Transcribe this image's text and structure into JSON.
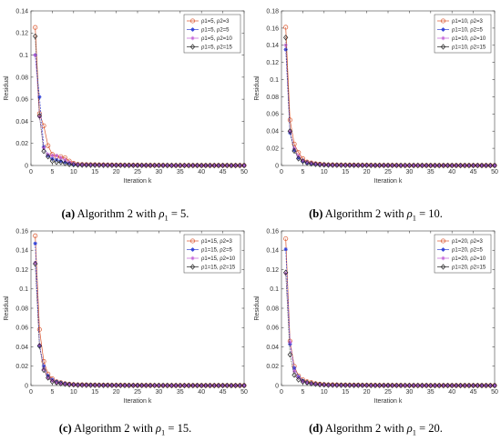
{
  "colors": [
    "#d9542b",
    "#2f3fd6",
    "#c05cd6",
    "#222222"
  ],
  "markers": [
    "circle",
    "star",
    "asterisk",
    "diamond"
  ],
  "chart_data": [
    {
      "type": "line",
      "caption_label": "(a)",
      "caption_text": "Algorithm 2 with ",
      "caption_rho": "ρ",
      "caption_sub": "1",
      "caption_value": " = 5.",
      "xlabel": "Iteration  k",
      "ylabel": "Residual",
      "xlim": [
        0,
        50
      ],
      "ylim": [
        0,
        0.14
      ],
      "xticks": [
        "0",
        "5",
        "10",
        "15",
        "20",
        "25",
        "30",
        "35",
        "40",
        "45",
        "50"
      ],
      "yticks": [
        "0",
        "0.02",
        "0.04",
        "0.06",
        "0.08",
        "0.1",
        "0.12",
        "0.14"
      ],
      "ytick_values": [
        0,
        0.02,
        0.04,
        0.06,
        0.08,
        0.1,
        0.12,
        0.14
      ],
      "legend": [
        "ρ1=5, ρ2=3",
        "ρ1=5, ρ2=5",
        "ρ1=5, ρ2=10",
        "ρ1=5, ρ2=15"
      ],
      "series": [
        {
          "values": [
            0.125,
            0.047,
            0.036,
            0.018,
            0.01,
            0.008,
            0.008,
            0.007,
            0.004,
            0.002,
            0.001
          ]
        },
        {
          "values": [
            0.1,
            0.062,
            0.017,
            0.009,
            0.006,
            0.005,
            0.004,
            0.003,
            0.002,
            0.001,
            0.0008
          ]
        },
        {
          "values": [
            0.1,
            0.044,
            0.016,
            0.01,
            0.009,
            0.009,
            0.007,
            0.005,
            0.003,
            0.002,
            0.001
          ]
        },
        {
          "values": [
            0.117,
            0.045,
            0.013,
            0.008,
            0.004,
            0.003,
            0.003,
            0.002,
            0.001,
            0.0008,
            0.0005
          ]
        }
      ]
    },
    {
      "type": "line",
      "caption_label": "(b)",
      "caption_text": "Algorithm 2 with ",
      "caption_rho": "ρ",
      "caption_sub": "1",
      "caption_value": " = 10.",
      "xlabel": "Iteration  k",
      "ylabel": "Residual",
      "xlim": [
        0,
        50
      ],
      "ylim": [
        0,
        0.18
      ],
      "xticks": [
        "0",
        "5",
        "10",
        "15",
        "20",
        "25",
        "30",
        "35",
        "40",
        "45",
        "50"
      ],
      "yticks": [
        "0",
        "0.02",
        "0.04",
        "0.06",
        "0.08",
        "0.1",
        "0.12",
        "0.14",
        "0.16",
        "0.18"
      ],
      "ytick_values": [
        0,
        0.02,
        0.04,
        0.06,
        0.08,
        0.1,
        0.12,
        0.14,
        0.16,
        0.18
      ],
      "legend": [
        "ρ1=10, ρ2=3",
        "ρ1=10, ρ2=5",
        "ρ1=10, ρ2=10",
        "ρ1=10, ρ2=15"
      ],
      "series": [
        {
          "values": [
            0.161,
            0.053,
            0.025,
            0.015,
            0.008,
            0.004,
            0.003,
            0.002,
            0.0015,
            0.001,
            0.0008
          ]
        },
        {
          "values": [
            0.135,
            0.038,
            0.018,
            0.009,
            0.005,
            0.003,
            0.002,
            0.0015,
            0.001,
            0.0008,
            0.0005
          ]
        },
        {
          "values": [
            0.14,
            0.04,
            0.02,
            0.011,
            0.006,
            0.004,
            0.003,
            0.002,
            0.0015,
            0.001,
            0.0008
          ]
        },
        {
          "values": [
            0.149,
            0.04,
            0.017,
            0.008,
            0.005,
            0.003,
            0.002,
            0.0015,
            0.001,
            0.0008,
            0.0005
          ]
        }
      ]
    },
    {
      "type": "line",
      "caption_label": "(c)",
      "caption_text": "Algorithm 2 with ",
      "caption_rho": "ρ",
      "caption_sub": "1",
      "caption_value": " = 15.",
      "xlabel": "Iteration  k",
      "ylabel": "Residual",
      "xlim": [
        0,
        50
      ],
      "ylim": [
        0,
        0.16
      ],
      "xticks": [
        "0",
        "5",
        "10",
        "15",
        "20",
        "25",
        "30",
        "35",
        "40",
        "45",
        "50"
      ],
      "yticks": [
        "0",
        "0.02",
        "0.04",
        "0.06",
        "0.08",
        "0.1",
        "0.12",
        "0.14",
        "0.16"
      ],
      "ytick_values": [
        0,
        0.02,
        0.04,
        0.06,
        0.08,
        0.1,
        0.12,
        0.14,
        0.16
      ],
      "legend": [
        "ρ1=15, ρ2=3",
        "ρ1=15, ρ2=5",
        "ρ1=15, ρ2=10",
        "ρ1=15, ρ2=15"
      ],
      "series": [
        {
          "values": [
            0.155,
            0.058,
            0.025,
            0.012,
            0.007,
            0.004,
            0.003,
            0.002,
            0.0015,
            0.001,
            0.0008
          ]
        },
        {
          "values": [
            0.147,
            0.041,
            0.02,
            0.01,
            0.006,
            0.004,
            0.003,
            0.002,
            0.0015,
            0.001,
            0.0008
          ]
        },
        {
          "values": [
            0.127,
            0.042,
            0.017,
            0.008,
            0.005,
            0.003,
            0.002,
            0.0015,
            0.001,
            0.0008,
            0.0005
          ]
        },
        {
          "values": [
            0.126,
            0.041,
            0.016,
            0.008,
            0.004,
            0.003,
            0.002,
            0.0015,
            0.001,
            0.0008,
            0.0005
          ]
        }
      ]
    },
    {
      "type": "line",
      "caption_label": "(d)",
      "caption_text": "Algorithm 2 with ",
      "caption_rho": "ρ",
      "caption_sub": "1",
      "caption_value": " = 20.",
      "xlabel": "Iteration  k",
      "ylabel": "Residual",
      "xlim": [
        0,
        50
      ],
      "ylim": [
        0,
        0.16
      ],
      "xticks": [
        "0",
        "5",
        "10",
        "15",
        "20",
        "25",
        "30",
        "35",
        "40",
        "45",
        "50"
      ],
      "yticks": [
        "0",
        "0.02",
        "0.04",
        "0.06",
        "0.08",
        "0.1",
        "0.12",
        "0.14",
        "0.16"
      ],
      "ytick_values": [
        0,
        0.02,
        0.04,
        0.06,
        0.08,
        0.1,
        0.12,
        0.14,
        0.16
      ],
      "legend": [
        "ρ1=20, ρ2=3",
        "ρ1=20, ρ2=5",
        "ρ1=20, ρ2=10",
        "ρ1=20, ρ2=15"
      ],
      "series": [
        {
          "values": [
            0.152,
            0.046,
            0.02,
            0.01,
            0.006,
            0.004,
            0.003,
            0.002,
            0.0015,
            0.001,
            0.0008
          ]
        },
        {
          "values": [
            0.141,
            0.043,
            0.018,
            0.009,
            0.005,
            0.003,
            0.002,
            0.0015,
            0.001,
            0.0008,
            0.0005
          ]
        },
        {
          "values": [
            0.116,
            0.045,
            0.015,
            0.008,
            0.004,
            0.003,
            0.002,
            0.0015,
            0.001,
            0.0008,
            0.0005
          ]
        },
        {
          "values": [
            0.117,
            0.032,
            0.011,
            0.006,
            0.004,
            0.003,
            0.002,
            0.0015,
            0.001,
            0.0008,
            0.0005
          ]
        }
      ]
    }
  ]
}
